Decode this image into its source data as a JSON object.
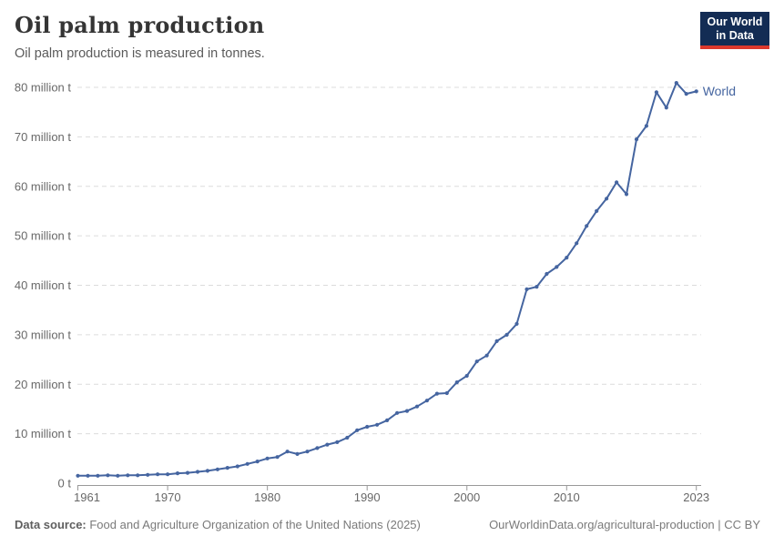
{
  "header": {
    "title": "Oil palm production",
    "subtitle": "Oil palm production is measured in tonnes."
  },
  "logo": {
    "line1": "Our World",
    "line2": "in Data",
    "bg_color": "#132c54",
    "accent_color": "#dc382c"
  },
  "footer": {
    "source_label": "Data source:",
    "source_text": " Food and Agriculture Organization of the United Nations (2025)",
    "attribution": "OurWorldinData.org/agricultural-production | CC BY"
  },
  "colors": {
    "line": "#4565a0",
    "grid": "#dcdcdc",
    "axis": "#999999",
    "tick_text": "#686868"
  },
  "chart_data": {
    "type": "line",
    "title": "Oil palm production",
    "ylabel": "",
    "xlabel": "",
    "unit": "tonnes",
    "grid": "horizontal-dashed",
    "legend": "end-of-line-label",
    "xlim": [
      1961,
      2023
    ],
    "ylim": [
      0,
      80
    ],
    "xticks": [
      1961,
      1970,
      1980,
      1990,
      2000,
      2010,
      2023
    ],
    "yticks": [
      {
        "value": 0,
        "label": "0 t"
      },
      {
        "value": 10,
        "label": "10 million t"
      },
      {
        "value": 20,
        "label": "20 million t"
      },
      {
        "value": 30,
        "label": "30 million t"
      },
      {
        "value": 40,
        "label": "40 million t"
      },
      {
        "value": 50,
        "label": "50 million t"
      },
      {
        "value": 60,
        "label": "60 million t"
      },
      {
        "value": 70,
        "label": "70 million t"
      },
      {
        "value": 80,
        "label": "80 million t"
      }
    ],
    "series": [
      {
        "name": "World",
        "x": [
          1961,
          1962,
          1963,
          1964,
          1965,
          1966,
          1967,
          1968,
          1969,
          1970,
          1971,
          1972,
          1973,
          1974,
          1975,
          1976,
          1977,
          1978,
          1979,
          1980,
          1981,
          1982,
          1983,
          1984,
          1985,
          1986,
          1987,
          1988,
          1989,
          1990,
          1991,
          1992,
          1993,
          1994,
          1995,
          1996,
          1997,
          1998,
          1999,
          2000,
          2001,
          2002,
          2003,
          2004,
          2005,
          2006,
          2007,
          2008,
          2009,
          2010,
          2011,
          2012,
          2013,
          2014,
          2015,
          2016,
          2017,
          2018,
          2019,
          2020,
          2021,
          2022,
          2023
        ],
        "values": [
          1.5,
          1.5,
          1.5,
          1.6,
          1.5,
          1.6,
          1.6,
          1.7,
          1.8,
          1.8,
          2.0,
          2.1,
          2.3,
          2.5,
          2.8,
          3.1,
          3.4,
          3.9,
          4.4,
          5.0,
          5.3,
          6.4,
          5.9,
          6.4,
          7.1,
          7.8,
          8.3,
          9.2,
          10.7,
          11.4,
          11.8,
          12.7,
          14.2,
          14.6,
          15.5,
          16.7,
          18.1,
          18.2,
          20.4,
          21.7,
          24.6,
          25.8,
          28.7,
          30.0,
          32.2,
          39.2,
          39.7,
          42.3,
          43.7,
          45.6,
          48.5,
          52.0,
          55.0,
          57.5,
          60.8,
          58.4,
          69.5,
          72.2,
          79.0,
          75.9,
          80.9,
          78.7,
          79.2
        ]
      }
    ]
  }
}
